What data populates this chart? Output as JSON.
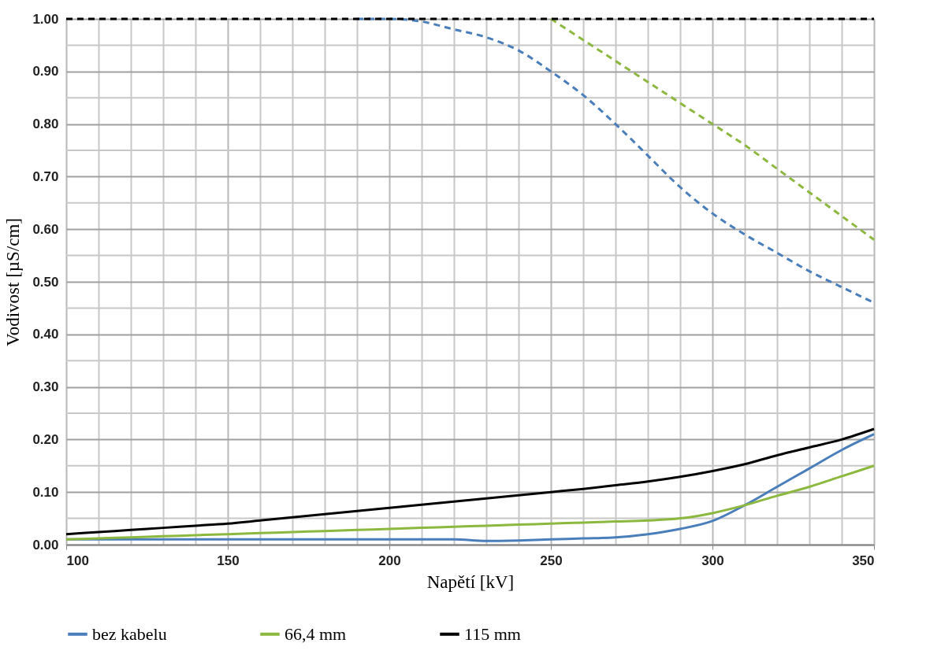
{
  "chart_data": {
    "type": "line",
    "xlabel": "Napětí [kV]",
    "ylabel": "Vodivost [µS/cm]",
    "x": [
      100,
      110,
      120,
      130,
      140,
      150,
      160,
      170,
      180,
      190,
      200,
      210,
      220,
      230,
      240,
      250,
      260,
      270,
      280,
      290,
      300,
      310,
      320,
      330,
      340,
      350
    ],
    "series": [
      {
        "type": "line",
        "line_style": "dashed",
        "color": "#4a7ebb",
        "values": [
          null,
          null,
          null,
          null,
          null,
          null,
          null,
          null,
          null,
          1,
          1,
          0.995,
          0.98,
          0.965,
          0.94,
          0.9,
          0.855,
          0.8,
          0.74,
          0.68,
          0.63,
          0.59,
          0.555,
          0.52,
          0.49,
          0.46
        ]
      },
      {
        "type": "line",
        "line_style": "dashed",
        "color": "#8cb83f",
        "values": [
          null,
          null,
          null,
          null,
          null,
          null,
          null,
          null,
          null,
          null,
          null,
          null,
          null,
          null,
          null,
          1,
          0.96,
          0.92,
          0.88,
          0.84,
          0.8,
          0.76,
          0.715,
          0.67,
          0.625,
          0.58
        ]
      },
      {
        "type": "line",
        "line_style": "dashed",
        "color": "#000000",
        "values": [
          1,
          1,
          1,
          1,
          1,
          1,
          1,
          1,
          1,
          1,
          1,
          1,
          1,
          1,
          1,
          1,
          1,
          1,
          1,
          1,
          1,
          1,
          1,
          1,
          1,
          1
        ]
      },
      {
        "type": "line",
        "line_style": "solid",
        "name": "bez kabelu",
        "color": "#4a7ebb",
        "values": [
          0.01,
          0.01,
          0.01,
          0.01,
          0.01,
          0.01,
          0.01,
          0.01,
          0.01,
          0.01,
          0.01,
          0.01,
          0.01,
          0.007,
          0.008,
          0.01,
          0.012,
          0.014,
          0.02,
          0.03,
          0.045,
          0.075,
          0.11,
          0.145,
          0.18,
          0.21
        ]
      },
      {
        "type": "line",
        "line_style": "solid",
        "name": "66,4 mm",
        "color": "#8cb83f",
        "values": [
          0.01,
          0.012,
          0.014,
          0.016,
          0.018,
          0.02,
          0.022,
          0.024,
          0.026,
          0.028,
          0.03,
          0.032,
          0.034,
          0.036,
          0.038,
          0.04,
          0.042,
          0.044,
          0.046,
          0.05,
          0.06,
          0.075,
          0.093,
          0.11,
          0.13,
          0.15
        ]
      },
      {
        "type": "line",
        "line_style": "solid",
        "name": "115 mm",
        "color": "#000000",
        "values": [
          0.02,
          0.024,
          0.028,
          0.032,
          0.036,
          0.04,
          0.046,
          0.052,
          0.058,
          0.064,
          0.07,
          0.076,
          0.082,
          0.088,
          0.094,
          0.1,
          0.106,
          0.113,
          0.12,
          0.129,
          0.14,
          0.153,
          0.17,
          0.185,
          0.2,
          0.22
        ]
      }
    ],
    "xlim": [
      100,
      350
    ],
    "xticks": [
      100,
      {
        "value": 110,
        "label": null
      },
      {
        "value": 120,
        "label": null
      },
      {
        "value": 130,
        "label": null
      },
      {
        "value": 140,
        "label": null
      },
      150,
      {
        "value": 160,
        "label": null
      },
      {
        "value": 170,
        "label": null
      },
      {
        "value": 180,
        "label": null
      },
      {
        "value": 190,
        "label": null
      },
      200,
      {
        "value": 210,
        "label": null
      },
      {
        "value": 220,
        "label": null
      },
      {
        "value": 230,
        "label": null
      },
      {
        "value": 240,
        "label": null
      },
      250,
      {
        "value": 260,
        "label": null
      },
      {
        "value": 270,
        "label": null
      },
      {
        "value": 280,
        "label": null
      },
      {
        "value": 290,
        "label": null
      },
      300,
      {
        "value": 310,
        "label": null
      },
      {
        "value": 320,
        "label": null
      },
      {
        "value": 330,
        "label": null
      },
      {
        "value": 340,
        "label": null
      },
      350
    ],
    "ylim": [
      0,
      1
    ],
    "yticks": [
      {
        "value": 0,
        "label": "0.00"
      },
      {
        "value": 0.05,
        "label": null
      },
      {
        "value": 0.1,
        "label": "0.10"
      },
      {
        "value": 0.15,
        "label": null
      },
      {
        "value": 0.2,
        "label": "0.20"
      },
      {
        "value": 0.25,
        "label": null
      },
      {
        "value": 0.3,
        "label": "0.30"
      },
      {
        "value": 0.35,
        "label": null
      },
      {
        "value": 0.4,
        "label": "0.40"
      },
      {
        "value": 0.45,
        "label": null
      },
      {
        "value": 0.5,
        "label": "0.50"
      },
      {
        "value": 0.55,
        "label": null
      },
      {
        "value": 0.6,
        "label": "0.60"
      },
      {
        "value": 0.65,
        "label": null
      },
      {
        "value": 0.7,
        "label": "0.70"
      },
      {
        "value": 0.75,
        "label": null
      },
      {
        "value": 0.8,
        "label": "0.80"
      },
      {
        "value": 0.85,
        "label": null
      },
      {
        "value": 0.9,
        "label": "0.90"
      },
      {
        "value": 0.95,
        "label": null
      },
      {
        "value": 1,
        "label": "1.00"
      }
    ],
    "grid": true,
    "legend": "bottom",
    "marker": "none"
  }
}
